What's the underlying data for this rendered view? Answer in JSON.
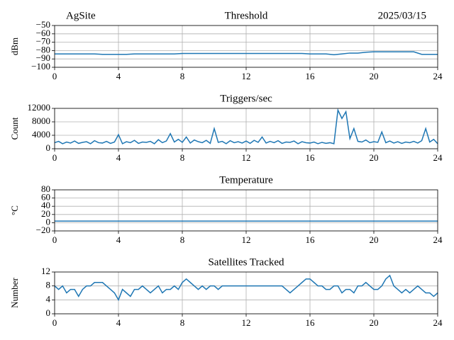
{
  "chart_data": [
    {
      "type": "line",
      "title": "Threshold",
      "left_title": "AgSite",
      "right_title": "2025/03/15",
      "ylabel": "dBm",
      "color": "#1f77b4",
      "grid": true,
      "x": [
        0,
        0.5,
        1,
        1.5,
        2,
        2.5,
        3,
        3.5,
        4,
        4.5,
        5,
        5.5,
        6,
        6.5,
        7,
        7.5,
        8,
        8.5,
        9,
        9.5,
        10,
        10.5,
        11,
        11.5,
        12,
        12.5,
        13,
        13.5,
        14,
        14.5,
        15,
        15.5,
        16,
        16.5,
        17,
        17.5,
        18,
        18.5,
        19,
        19.5,
        20,
        20.5,
        21,
        21.5,
        22,
        22.5,
        23,
        23.5,
        24
      ],
      "values": [
        -84,
        -84,
        -84,
        -84,
        -84,
        -84,
        -84.5,
        -84.5,
        -84.5,
        -84.5,
        -84,
        -84,
        -84,
        -84,
        -84,
        -84,
        -83.5,
        -83.5,
        -83.5,
        -83.5,
        -83.5,
        -83.5,
        -83.5,
        -83.5,
        -83.5,
        -83.5,
        -83.5,
        -83.5,
        -83.5,
        -83.5,
        -83.5,
        -83.5,
        -84,
        -84,
        -84,
        -85,
        -84,
        -83,
        -83,
        -82,
        -81.5,
        -81.5,
        -81.5,
        -81.5,
        -81.5,
        -81.5,
        -84.5,
        -84.5,
        -84.5
      ],
      "xlim": [
        0,
        24
      ],
      "xticks": [
        0,
        4,
        8,
        12,
        16,
        20,
        24
      ],
      "ylim": [
        -100,
        -50
      ],
      "yticks": [
        {
          "value": -50,
          "label": "−50"
        },
        {
          "value": -60,
          "label": "−60"
        },
        {
          "value": -70,
          "label": "−70"
        },
        {
          "value": -80,
          "label": "−80"
        },
        {
          "value": -90,
          "label": "−90"
        },
        {
          "value": -100,
          "label": "−100"
        }
      ]
    },
    {
      "type": "line",
      "title": "Triggers/sec",
      "ylabel": "Count",
      "color": "#1f77b4",
      "grid": true,
      "x": [
        0,
        0.25,
        0.5,
        0.75,
        1,
        1.25,
        1.5,
        1.75,
        2,
        2.25,
        2.5,
        2.75,
        3,
        3.25,
        3.5,
        3.75,
        4,
        4.25,
        4.5,
        4.75,
        5,
        5.25,
        5.5,
        5.75,
        6,
        6.25,
        6.5,
        6.75,
        7,
        7.25,
        7.5,
        7.75,
        8,
        8.25,
        8.5,
        8.75,
        9,
        9.25,
        9.5,
        9.75,
        10,
        10.25,
        10.5,
        10.75,
        11,
        11.25,
        11.5,
        11.75,
        12,
        12.25,
        12.5,
        12.75,
        13,
        13.25,
        13.5,
        13.75,
        14,
        14.25,
        14.5,
        14.75,
        15,
        15.25,
        15.5,
        15.75,
        16,
        16.25,
        16.5,
        16.75,
        17,
        17.25,
        17.5,
        17.75,
        18,
        18.25,
        18.5,
        18.75,
        19,
        19.25,
        19.5,
        19.75,
        20,
        20.25,
        20.5,
        20.75,
        21,
        21.25,
        21.5,
        21.75,
        22,
        22.25,
        22.5,
        22.75,
        23,
        23.25,
        23.5,
        23.75,
        24
      ],
      "values": [
        1800,
        2200,
        1500,
        2000,
        1700,
        2300,
        1600,
        1900,
        2100,
        1500,
        2400,
        1800,
        1700,
        2200,
        1600,
        2000,
        4200,
        1500,
        2100,
        1800,
        2500,
        1600,
        2000,
        1900,
        2200,
        1500,
        2700,
        1800,
        2300,
        4500,
        2000,
        2800,
        1900,
        3500,
        1700,
        2600,
        2100,
        1800,
        2500,
        1600,
        6000,
        1900,
        2200,
        1500,
        2400,
        1800,
        2100,
        1700,
        2300,
        1600,
        2500,
        1900,
        3500,
        1700,
        2200,
        1800,
        2400,
        1600,
        2000,
        1900,
        2300,
        1500,
        2100,
        1800,
        1700,
        2000,
        1500,
        1900,
        1600,
        1800,
        1500,
        11500,
        9000,
        11000,
        3000,
        6000,
        2200,
        2000,
        2600,
        1800,
        2100,
        1900,
        5000,
        1800,
        2300,
        1700,
        2100,
        1600,
        2000,
        1800,
        2200,
        1700,
        2400,
        6000,
        2000,
        2800,
        1500
      ],
      "xlim": [
        0,
        24
      ],
      "xticks": [
        0,
        4,
        8,
        12,
        16,
        20,
        24
      ],
      "ylim": [
        0,
        12000
      ],
      "yticks": [
        0,
        4000,
        8000,
        12000
      ]
    },
    {
      "type": "line",
      "title": "Temperature",
      "ylabel": "°C",
      "color": "#1f77b4",
      "grid": true,
      "x": [
        0,
        0.5,
        1,
        1.5,
        2,
        2.5,
        3,
        3.5,
        4,
        4.5,
        5,
        5.5,
        6,
        6.5,
        7,
        7.5,
        8,
        8.5,
        9,
        9.5,
        10,
        10.5,
        11,
        11.5,
        12,
        12.5,
        13,
        13.5,
        14,
        14.5,
        15,
        15.5,
        16,
        16.5,
        17,
        17.5,
        18,
        18.5,
        19,
        19.5,
        20,
        20.5,
        21,
        21.5,
        22,
        22.5,
        23,
        23.5,
        24
      ],
      "values": [
        4,
        4,
        4,
        4,
        4,
        4,
        4,
        4,
        4,
        4,
        4,
        4,
        4,
        4,
        4,
        4,
        4,
        4,
        4,
        4,
        4,
        4,
        4,
        4,
        4,
        4,
        4,
        4,
        4,
        4,
        4,
        4,
        4,
        4,
        4,
        4,
        4,
        4,
        4,
        4,
        4,
        4,
        4,
        4,
        4,
        4,
        4,
        4,
        4
      ],
      "xlim": [
        0,
        24
      ],
      "xticks": [
        0,
        4,
        8,
        12,
        16,
        20,
        24
      ],
      "ylim": [
        -20,
        80
      ],
      "yticks": [
        {
          "value": -20,
          "label": "−20"
        },
        0,
        20,
        40,
        60,
        80
      ]
    },
    {
      "type": "line",
      "title": "Satellites Tracked",
      "ylabel": "Number",
      "color": "#1f77b4",
      "grid": true,
      "x": [
        0,
        0.25,
        0.5,
        0.75,
        1,
        1.25,
        1.5,
        1.75,
        2,
        2.25,
        2.5,
        2.75,
        3,
        3.25,
        3.5,
        3.75,
        4,
        4.25,
        4.5,
        4.75,
        5,
        5.25,
        5.5,
        5.75,
        6,
        6.25,
        6.5,
        6.75,
        7,
        7.25,
        7.5,
        7.75,
        8,
        8.25,
        8.5,
        8.75,
        9,
        9.25,
        9.5,
        9.75,
        10,
        10.25,
        10.5,
        10.75,
        11,
        11.25,
        11.5,
        11.75,
        12,
        12.25,
        12.5,
        12.75,
        13,
        13.25,
        13.5,
        13.75,
        14,
        14.25,
        14.5,
        14.75,
        15,
        15.25,
        15.5,
        15.75,
        16,
        16.25,
        16.5,
        16.75,
        17,
        17.25,
        17.5,
        17.75,
        18,
        18.25,
        18.5,
        18.75,
        19,
        19.25,
        19.5,
        19.75,
        20,
        20.25,
        20.5,
        20.75,
        21,
        21.25,
        21.5,
        21.75,
        22,
        22.25,
        22.5,
        22.75,
        23,
        23.25,
        23.5,
        23.75,
        24
      ],
      "values": [
        8,
        7,
        8,
        6,
        7,
        7,
        5,
        7,
        8,
        8,
        9,
        9,
        9,
        8,
        7,
        6,
        4,
        7,
        6,
        5,
        7,
        7,
        8,
        7,
        6,
        7,
        8,
        6,
        7,
        7,
        8,
        7,
        9,
        10,
        9,
        8,
        7,
        8,
        7,
        8,
        8,
        7,
        8,
        8,
        8,
        8,
        8,
        8,
        8,
        8,
        8,
        8,
        8,
        8,
        8,
        8,
        8,
        8,
        7,
        6,
        7,
        8,
        9,
        10,
        10,
        9,
        8,
        8,
        7,
        7,
        8,
        8,
        6,
        7,
        7,
        6,
        8,
        8,
        9,
        8,
        7,
        7,
        8,
        10,
        11,
        8,
        7,
        6,
        7,
        6,
        7,
        8,
        7,
        6,
        6,
        5,
        6
      ],
      "xlim": [
        0,
        24
      ],
      "xticks": [
        0,
        4,
        8,
        12,
        16,
        20,
        24
      ],
      "ylim": [
        0,
        12
      ],
      "yticks": [
        0,
        4,
        8,
        12
      ]
    }
  ]
}
